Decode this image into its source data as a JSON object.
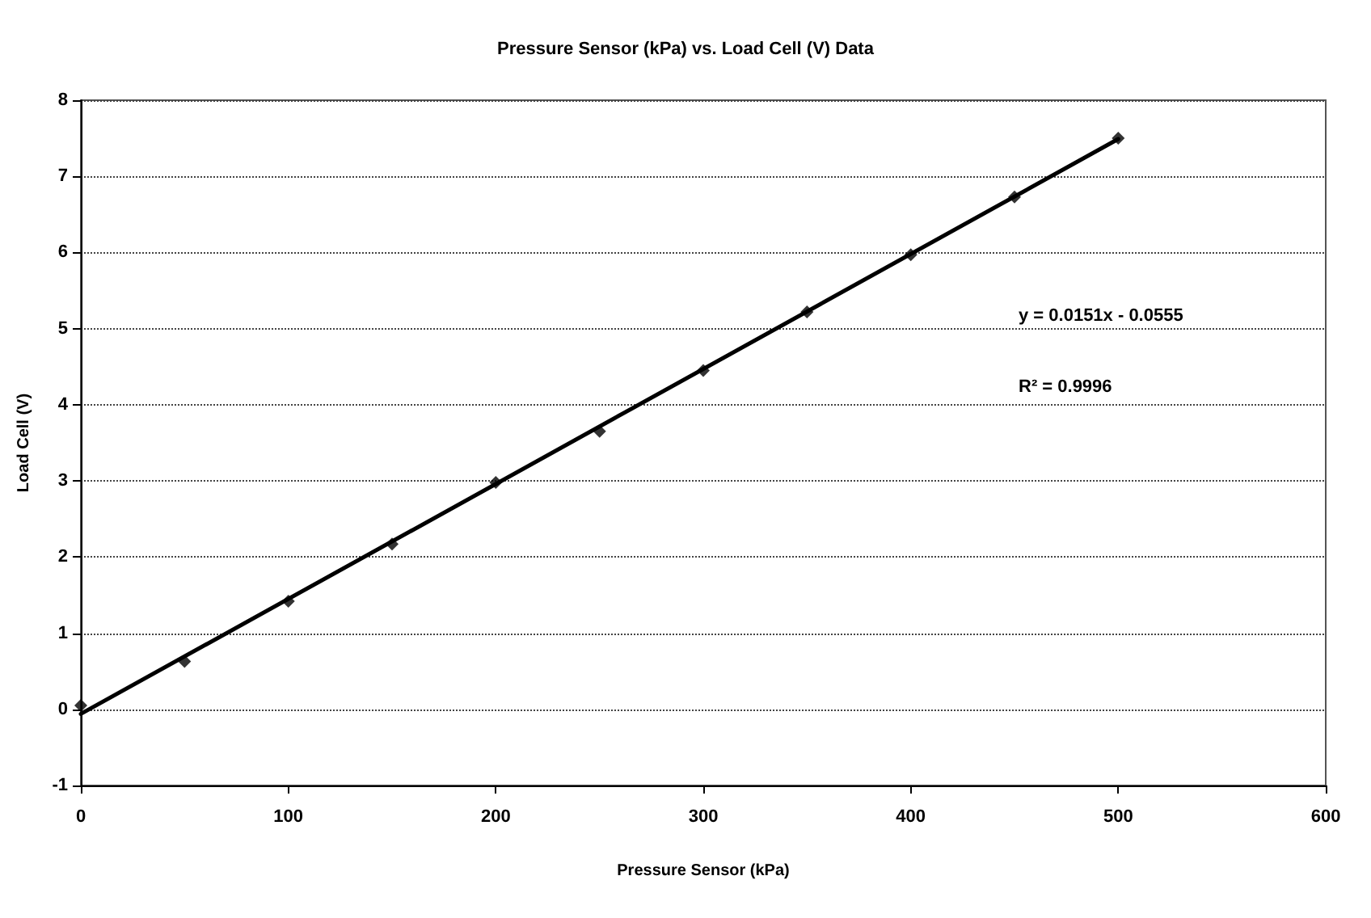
{
  "chart_data": {
    "type": "scatter",
    "title": "Pressure Sensor (kPa) vs. Load Cell (V) Data",
    "xlabel": "Pressure Sensor (kPa)",
    "ylabel": "Load Cell (V)",
    "annotations": [
      "y = 0.0151x - 0.0555",
      "R² = 0.9996"
    ],
    "x": [
      0,
      50,
      100,
      150,
      200,
      250,
      300,
      350,
      400,
      450,
      500
    ],
    "series": [
      {
        "color": "#000000",
        "marker": "diamond",
        "values": [
          0.05,
          0.63,
          1.42,
          2.17,
          2.98,
          3.65,
          4.45,
          5.22,
          5.97,
          6.73,
          7.5
        ]
      },
      {
        "type": "line",
        "color": "#000000",
        "marker": "none",
        "line_style": "solid",
        "x": [
          0,
          500
        ],
        "values": [
          -0.06,
          7.49
        ]
      }
    ],
    "xlim": [
      0,
      600
    ],
    "xticks": [
      0,
      100,
      200,
      300,
      400,
      500,
      600
    ],
    "ylim": [
      -1,
      8
    ],
    "yticks": [
      -1,
      0,
      1,
      2,
      3,
      4,
      5,
      6,
      7,
      8
    ],
    "grid": "y"
  }
}
